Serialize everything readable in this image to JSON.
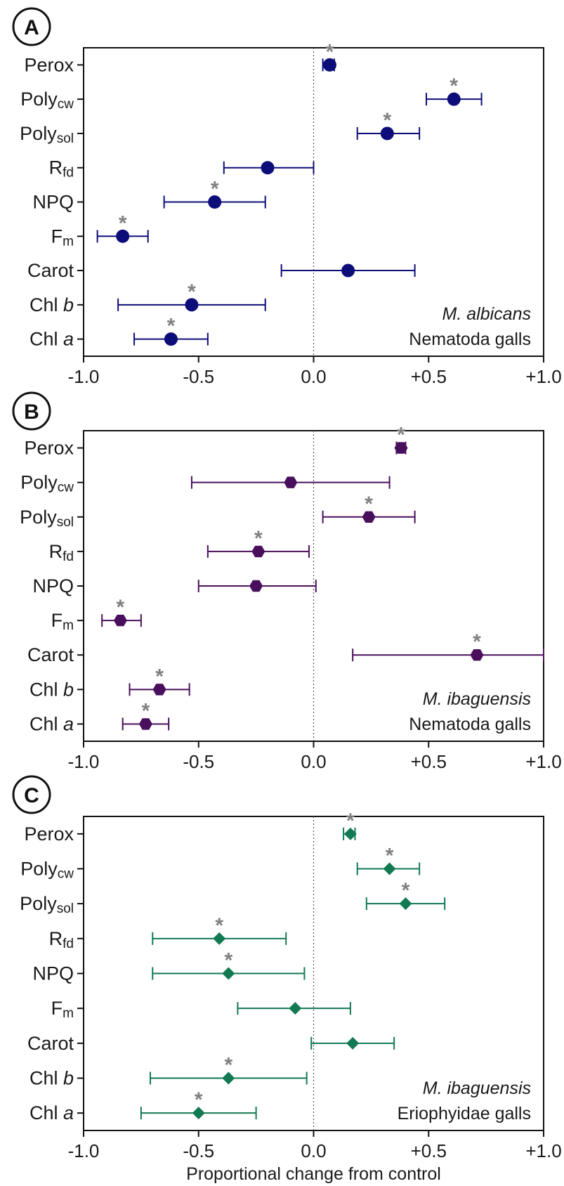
{
  "chart_data": [
    {
      "panel": "A",
      "type": "scatter",
      "marker": "circle",
      "color": "#0d0d7a",
      "annotation_species": "M. albicans",
      "annotation_gall": "Nematoda galls",
      "xlim": [
        -1.0,
        1.0
      ],
      "xticks": [
        "-1.0",
        "-0.5",
        "0.0",
        "+0.5",
        "+1.0"
      ],
      "points": [
        {
          "var": "Perox",
          "sub": "",
          "italic": "",
          "value": 0.07,
          "low": 0.04,
          "high": 0.09,
          "sig": true
        },
        {
          "var": "Poly",
          "sub": "cw",
          "italic": "",
          "value": 0.61,
          "low": 0.49,
          "high": 0.73,
          "sig": true
        },
        {
          "var": "Poly",
          "sub": "sol",
          "italic": "",
          "value": 0.32,
          "low": 0.19,
          "high": 0.46,
          "sig": true
        },
        {
          "var": "R",
          "sub": "fd",
          "italic": "",
          "value": -0.2,
          "low": -0.39,
          "high": 0.0,
          "sig": false
        },
        {
          "var": "NPQ",
          "sub": "",
          "italic": "",
          "value": -0.43,
          "low": -0.65,
          "high": -0.21,
          "sig": true
        },
        {
          "var": "F",
          "sub": "m",
          "italic": "",
          "value": -0.83,
          "low": -0.94,
          "high": -0.72,
          "sig": true
        },
        {
          "var": "Carot",
          "sub": "",
          "italic": "",
          "value": 0.15,
          "low": -0.14,
          "high": 0.44,
          "sig": false
        },
        {
          "var": "Chl ",
          "sub": "",
          "italic": "b",
          "value": -0.53,
          "low": -0.85,
          "high": -0.21,
          "sig": true
        },
        {
          "var": "Chl ",
          "sub": "",
          "italic": "a",
          "value": -0.62,
          "low": -0.78,
          "high": -0.46,
          "sig": true
        }
      ]
    },
    {
      "panel": "B",
      "type": "scatter",
      "marker": "hexagon",
      "color": "#4a0f5c",
      "annotation_species": "M. ibaguensis",
      "annotation_gall": "Nematoda galls",
      "xlim": [
        -1.0,
        1.0
      ],
      "xticks": [
        "-1.0",
        "-0.5",
        "0.0",
        "+0.5",
        "+1.0"
      ],
      "points": [
        {
          "var": "Perox",
          "sub": "",
          "italic": "",
          "value": 0.38,
          "low": 0.36,
          "high": 0.4,
          "sig": true
        },
        {
          "var": "Poly",
          "sub": "cw",
          "italic": "",
          "value": -0.1,
          "low": -0.53,
          "high": 0.33,
          "sig": false
        },
        {
          "var": "Poly",
          "sub": "sol",
          "italic": "",
          "value": 0.24,
          "low": 0.04,
          "high": 0.44,
          "sig": true
        },
        {
          "var": "R",
          "sub": "fd",
          "italic": "",
          "value": -0.24,
          "low": -0.46,
          "high": -0.02,
          "sig": true
        },
        {
          "var": "NPQ",
          "sub": "",
          "italic": "",
          "value": -0.25,
          "low": -0.5,
          "high": 0.01,
          "sig": false
        },
        {
          "var": "F",
          "sub": "m",
          "italic": "",
          "value": -0.84,
          "low": -0.92,
          "high": -0.75,
          "sig": true
        },
        {
          "var": "Carot",
          "sub": "",
          "italic": "",
          "value": 0.71,
          "low": 0.17,
          "high": 1.0,
          "sig": true
        },
        {
          "var": "Chl ",
          "sub": "",
          "italic": "b",
          "value": -0.67,
          "low": -0.8,
          "high": -0.54,
          "sig": true
        },
        {
          "var": "Chl ",
          "sub": "",
          "italic": "a",
          "value": -0.73,
          "low": -0.83,
          "high": -0.63,
          "sig": true
        }
      ]
    },
    {
      "panel": "C",
      "type": "scatter",
      "marker": "diamond",
      "color": "#127a52",
      "annotation_species": "M. ibaguensis",
      "annotation_gall": "Eriophyidae galls",
      "xlim": [
        -1.0,
        1.0
      ],
      "xticks": [
        "-1.0",
        "-0.5",
        "0.0",
        "+0.5",
        "+1.0"
      ],
      "xlabel": "Proportional change from control",
      "points": [
        {
          "var": "Perox",
          "sub": "",
          "italic": "",
          "value": 0.16,
          "low": 0.13,
          "high": 0.18,
          "sig": true
        },
        {
          "var": "Poly",
          "sub": "cw",
          "italic": "",
          "value": 0.33,
          "low": 0.19,
          "high": 0.46,
          "sig": true
        },
        {
          "var": "Poly",
          "sub": "sol",
          "italic": "",
          "value": 0.4,
          "low": 0.23,
          "high": 0.57,
          "sig": true
        },
        {
          "var": "R",
          "sub": "fd",
          "italic": "",
          "value": -0.41,
          "low": -0.7,
          "high": -0.12,
          "sig": true
        },
        {
          "var": "NPQ",
          "sub": "",
          "italic": "",
          "value": -0.37,
          "low": -0.7,
          "high": -0.04,
          "sig": true
        },
        {
          "var": "F",
          "sub": "m",
          "italic": "",
          "value": -0.08,
          "low": -0.33,
          "high": 0.16,
          "sig": false
        },
        {
          "var": "Carot",
          "sub": "",
          "italic": "",
          "value": 0.17,
          "low": -0.01,
          "high": 0.35,
          "sig": false
        },
        {
          "var": "Chl ",
          "sub": "",
          "italic": "b",
          "value": -0.37,
          "low": -0.71,
          "high": -0.03,
          "sig": true
        },
        {
          "var": "Chl ",
          "sub": "",
          "italic": "a",
          "value": -0.5,
          "low": -0.75,
          "high": -0.25,
          "sig": true
        }
      ]
    }
  ]
}
